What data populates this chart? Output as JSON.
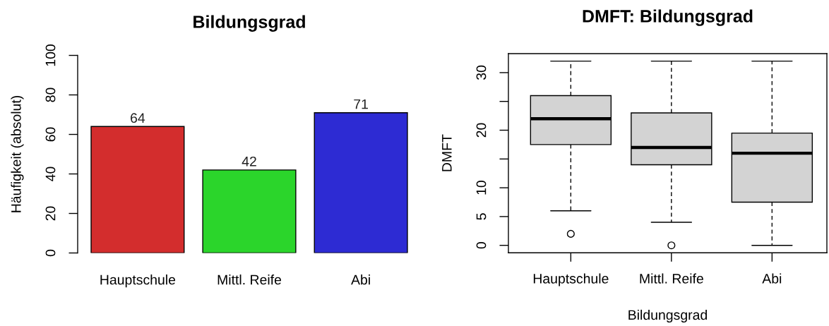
{
  "chart_data": [
    {
      "type": "bar",
      "title": "Bildungsgrad",
      "ylabel": "Häufigkeit (absolut)",
      "categories": [
        "Hauptschule",
        "Mittl. Reife",
        "Abi"
      ],
      "values": [
        64,
        42,
        71
      ],
      "colors": [
        "#d32d2d",
        "#2bd52b",
        "#2d2bd3"
      ],
      "ylim": [
        0,
        100
      ],
      "yticks": [
        0,
        20,
        40,
        60,
        80,
        100
      ],
      "data_labels": true
    },
    {
      "type": "box",
      "title": "DMFT: Bildungsgrad",
      "xlabel": "Bildungsgrad",
      "ylabel": "DMFT",
      "categories": [
        "Hauptschule",
        "Mittl. Reife",
        "Abi"
      ],
      "color": "#d3d3d3",
      "marker": "circle",
      "boxes": [
        {
          "low": 6,
          "q1": 17.5,
          "median": 22,
          "q3": 26,
          "high": 32,
          "outliers": [
            2
          ]
        },
        {
          "low": 4,
          "q1": 14,
          "median": 17,
          "q3": 23,
          "high": 32,
          "outliers": [
            0
          ]
        },
        {
          "low": 0,
          "q1": 7.5,
          "median": 16,
          "q3": 19.5,
          "high": 32
        }
      ],
      "ylim": [
        -1.3,
        33.3
      ],
      "yticks": [
        0,
        5,
        10,
        {
          "value": 15,
          "label": null
        },
        20,
        {
          "value": 25,
          "label": null
        },
        30
      ]
    }
  ]
}
